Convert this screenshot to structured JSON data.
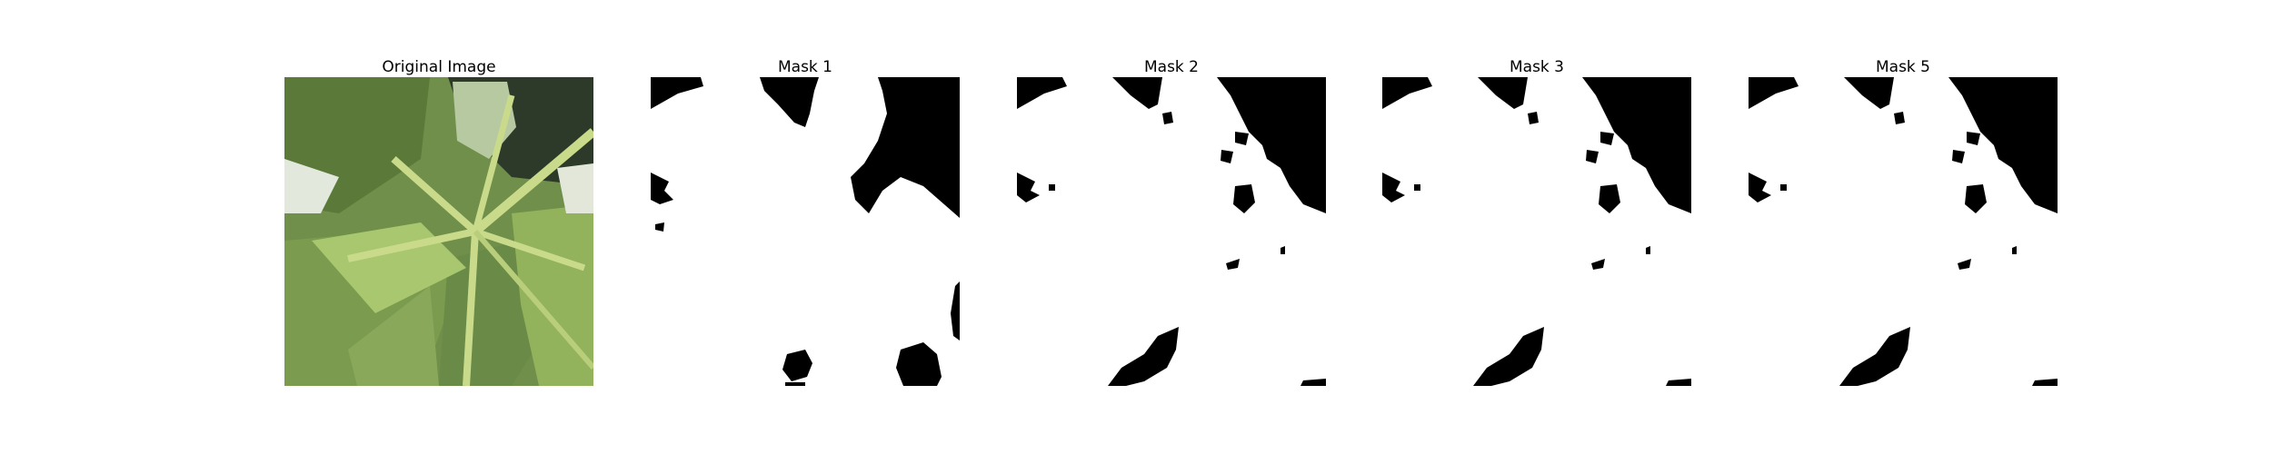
{
  "panels": [
    {
      "title": "Original Image"
    },
    {
      "title": "Mask 1"
    },
    {
      "title": "Mask 2"
    },
    {
      "title": "Mask 3"
    },
    {
      "title": "Mask 5"
    }
  ],
  "colors": {
    "background": "#ffffff",
    "mask_foreground": "#ffffff",
    "mask_background": "#000000",
    "leaf_dark": "#5c7d3c",
    "leaf_light": "#a9c76f",
    "stem": "#c9db8a"
  }
}
